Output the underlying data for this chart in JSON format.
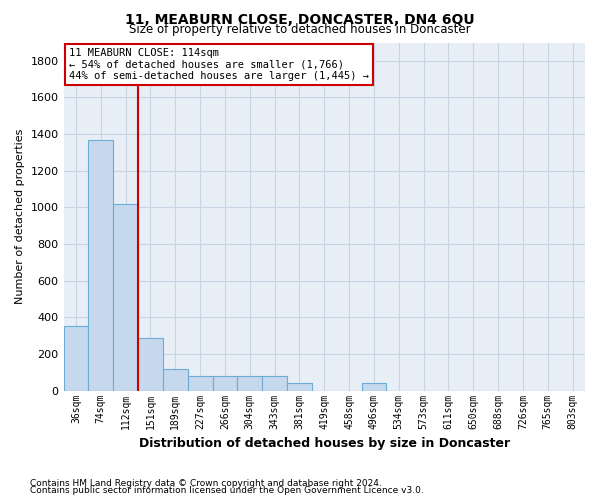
{
  "title": "11, MEABURN CLOSE, DONCASTER, DN4 6QU",
  "subtitle": "Size of property relative to detached houses in Doncaster",
  "xlabel": "Distribution of detached houses by size in Doncaster",
  "ylabel": "Number of detached properties",
  "footnote1": "Contains HM Land Registry data © Crown copyright and database right 2024.",
  "footnote2": "Contains public sector information licensed under the Open Government Licence v3.0.",
  "bin_labels": [
    "36sqm",
    "74sqm",
    "112sqm",
    "151sqm",
    "189sqm",
    "227sqm",
    "266sqm",
    "304sqm",
    "343sqm",
    "381sqm",
    "419sqm",
    "458sqm",
    "496sqm",
    "534sqm",
    "573sqm",
    "611sqm",
    "650sqm",
    "688sqm",
    "726sqm",
    "765sqm",
    "803sqm"
  ],
  "bar_heights": [
    355,
    1370,
    1020,
    290,
    120,
    80,
    80,
    80,
    80,
    40,
    0,
    0,
    40,
    0,
    0,
    0,
    0,
    0,
    0,
    0,
    0
  ],
  "bar_color": "#c5d8ee",
  "bar_edge_color": "#6aaed6",
  "grid_color": "#c8d4e4",
  "background_color": "#e8eef6",
  "red_line_x": 2,
  "red_line_color": "#cc0000",
  "annotation_text": "11 MEABURN CLOSE: 114sqm\n← 54% of detached houses are smaller (1,766)\n44% of semi-detached houses are larger (1,445) →",
  "annotation_box_color": "#ffffff",
  "annotation_box_edge": "#cc0000",
  "ylim": [
    0,
    1900
  ],
  "yticks": [
    0,
    200,
    400,
    600,
    800,
    1000,
    1200,
    1400,
    1600,
    1800
  ],
  "title_fontsize": 10,
  "subtitle_fontsize": 8.5,
  "ylabel_fontsize": 8,
  "xlabel_fontsize": 9
}
